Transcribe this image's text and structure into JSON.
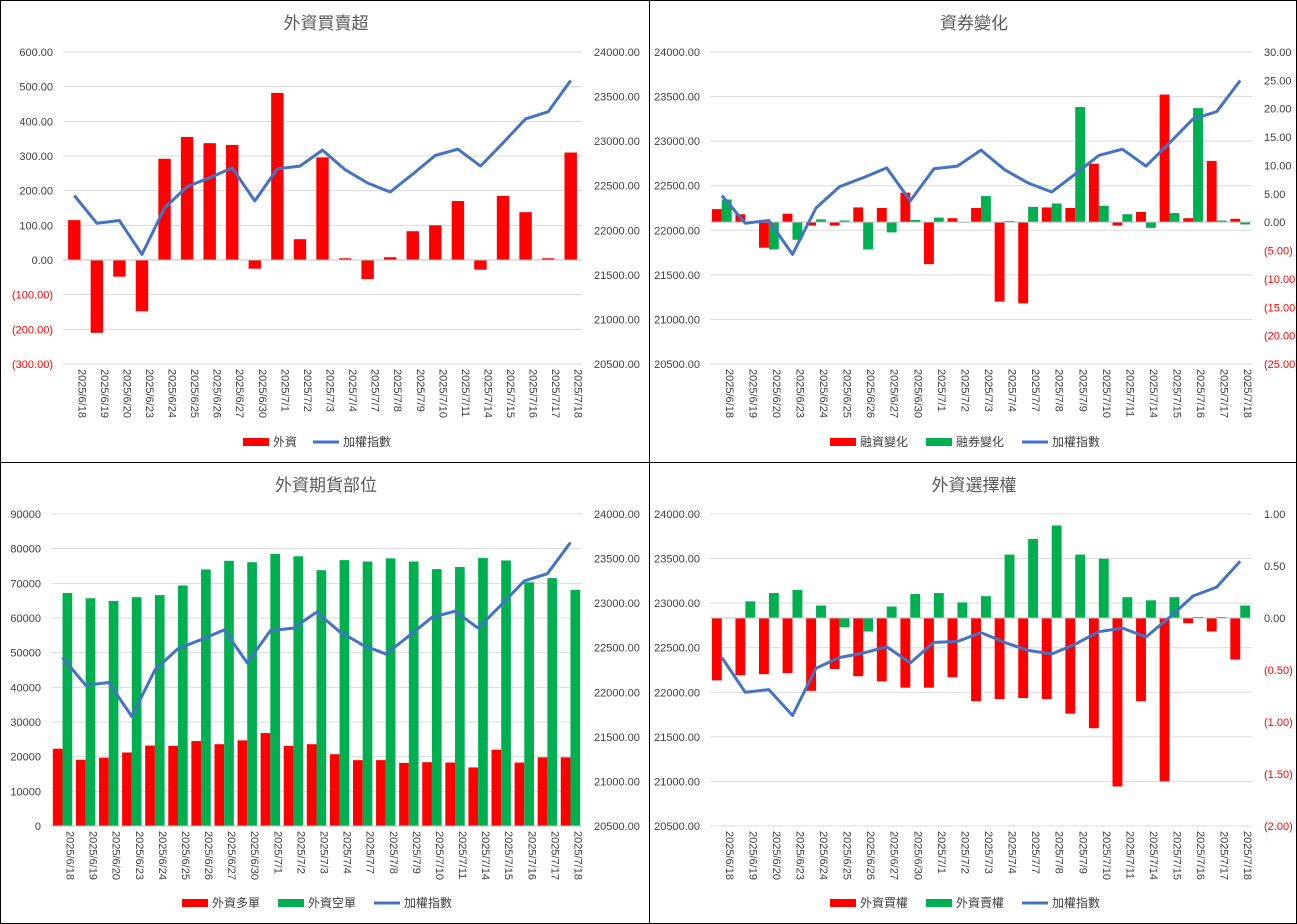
{
  "chart_data": [
    {
      "type": "bar",
      "title": "外資買賣超",
      "categories": [
        "2025/6/18",
        "2025/6/19",
        "2025/6/20",
        "2025/6/23",
        "2025/6/24",
        "2025/6/25",
        "2025/6/26",
        "2025/6/27",
        "2025/6/30",
        "2025/7/1",
        "2025/7/2",
        "2025/7/3",
        "2025/7/4",
        "2025/7/7",
        "2025/7/8",
        "2025/7/9",
        "2025/7/10",
        "2025/7/11",
        "2025/7/14",
        "2025/7/15",
        "2025/7/16",
        "2025/7/17",
        "2025/7/18"
      ],
      "series": [
        {
          "name": "外資",
          "axis": "left",
          "kind": "bar",
          "values": [
            115,
            -210,
            -48,
            -148,
            292,
            355,
            337,
            332,
            -25,
            482,
            60,
            296,
            5,
            -55,
            8,
            83,
            100,
            170,
            -28,
            185,
            138,
            5,
            310
          ]
        },
        {
          "name": "加權指數",
          "axis": "right",
          "kind": "line",
          "values": [
            22390,
            22080,
            22110,
            21730,
            22250,
            22490,
            22590,
            22700,
            22330,
            22690,
            22720,
            22900,
            22680,
            22530,
            22430,
            22630,
            22840,
            22910,
            22720,
            22980,
            23250,
            23330,
            23680
          ]
        }
      ],
      "ylim": [
        -300,
        600
      ],
      "yticks": [
        600,
        500,
        400,
        300,
        200,
        100,
        0,
        -100,
        -200,
        -300
      ],
      "y2lim": [
        20500,
        24000
      ],
      "y2ticks": [
        24000,
        23500,
        23000,
        22500,
        22000,
        21500,
        21000,
        20500
      ],
      "ytick_labels": [
        "600.00",
        "500.00",
        "400.00",
        "300.00",
        "200.00",
        "100.00",
        "0.00",
        "(100.00)",
        "(200.00)",
        "(300.00)"
      ],
      "y2tick_labels": [
        "24000.00",
        "23500.00",
        "23000.00",
        "22500.00",
        "22000.00",
        "21500.00",
        "21000.00",
        "20500.00"
      ],
      "legend_position": "bottom",
      "colors": {
        "外資": "#ff0000",
        "加權指數": "#4472c4"
      }
    },
    {
      "type": "bar",
      "title": "資券變化",
      "categories": [
        "2025/6/18",
        "2025/6/19",
        "2025/6/20",
        "2025/6/23",
        "2025/6/24",
        "2025/6/25",
        "2025/6/26",
        "2025/6/27",
        "2025/6/30",
        "2025/7/1",
        "2025/7/2",
        "2025/7/3",
        "2025/7/4",
        "2025/7/7",
        "2025/7/8",
        "2025/7/9",
        "2025/7/10",
        "2025/7/11",
        "2025/7/14",
        "2025/7/15",
        "2025/7/16",
        "2025/7/17",
        "2025/7/18"
      ],
      "series": [
        {
          "name": "融資變化",
          "axis": "right",
          "kind": "bar",
          "values": [
            2.3,
            1.4,
            -4.5,
            1.5,
            -0.6,
            -0.6,
            2.6,
            2.5,
            5.2,
            -7.4,
            0.7,
            2.5,
            -14.0,
            -14.3,
            2.6,
            2.5,
            10.3,
            -0.6,
            1.8,
            22.5,
            0.7,
            10.8,
            0.6
          ]
        },
        {
          "name": "融券變化",
          "axis": "right",
          "kind": "bar",
          "values": [
            4.0,
            0.0,
            -4.8,
            -3.1,
            0.5,
            0.3,
            -4.8,
            -1.8,
            0.4,
            0.8,
            0.0,
            4.6,
            0.2,
            2.7,
            3.3,
            20.3,
            2.9,
            1.4,
            -1.0,
            1.6,
            20.1,
            0.3,
            -0.4
          ]
        },
        {
          "name": "加權指數",
          "axis": "left",
          "kind": "line",
          "values": [
            22390,
            22080,
            22110,
            21730,
            22250,
            22490,
            22590,
            22700,
            22330,
            22690,
            22720,
            22900,
            22680,
            22530,
            22430,
            22630,
            22840,
            22910,
            22720,
            22980,
            23250,
            23330,
            23680
          ]
        }
      ],
      "ylim": [
        20500,
        24000
      ],
      "yticks": [
        24000,
        23500,
        23000,
        22500,
        22000,
        21500,
        21000,
        20500
      ],
      "y2lim": [
        -25,
        30
      ],
      "y2ticks": [
        30,
        25,
        20,
        15,
        10,
        5,
        0,
        -5,
        -10,
        -15,
        -20,
        -25
      ],
      "ytick_labels": [
        "24000.00",
        "23500.00",
        "23000.00",
        "22500.00",
        "22000.00",
        "21500.00",
        "21000.00",
        "20500.00"
      ],
      "y2tick_labels": [
        "30.00",
        "25.00",
        "20.00",
        "15.00",
        "10.00",
        "5.00",
        "0.00",
        "(5.00)",
        "(10.00)",
        "(15.00)",
        "(20.00)",
        "(25.00)"
      ],
      "legend_position": "bottom",
      "colors": {
        "融資變化": "#ff0000",
        "融券變化": "#00b050",
        "加權指數": "#4472c4"
      }
    },
    {
      "type": "bar",
      "title": "外資期貨部位",
      "categories": [
        "2025/6/18",
        "2025/6/19",
        "2025/6/20",
        "2025/6/23",
        "2025/6/24",
        "2025/6/25",
        "2025/6/26",
        "2025/6/27",
        "2025/6/30",
        "2025/7/1",
        "2025/7/2",
        "2025/7/3",
        "2025/7/4",
        "2025/7/7",
        "2025/7/8",
        "2025/7/9",
        "2025/7/10",
        "2025/7/11",
        "2025/7/14",
        "2025/7/15",
        "2025/7/16",
        "2025/7/17",
        "2025/7/18"
      ],
      "series": [
        {
          "name": "外資多單",
          "axis": "left",
          "kind": "bar",
          "values": [
            22300,
            19100,
            19700,
            21200,
            23200,
            23100,
            24500,
            23600,
            24700,
            26800,
            23100,
            23600,
            20700,
            19000,
            19000,
            18200,
            18400,
            18300,
            16900,
            22000,
            18300,
            19800,
            19800
          ]
        },
        {
          "name": "外資空單",
          "axis": "left",
          "kind": "bar",
          "values": [
            67200,
            65700,
            64900,
            66000,
            66600,
            69400,
            74000,
            76500,
            76100,
            78500,
            77800,
            73800,
            76700,
            76300,
            77200,
            76300,
            74100,
            74700,
            77300,
            76600,
            70300,
            71500,
            68100
          ]
        },
        {
          "name": "加權指數",
          "axis": "right",
          "kind": "line",
          "values": [
            22390,
            22080,
            22110,
            21730,
            22250,
            22490,
            22590,
            22700,
            22330,
            22690,
            22720,
            22900,
            22680,
            22530,
            22430,
            22630,
            22840,
            22910,
            22720,
            22980,
            23250,
            23330,
            23680
          ]
        }
      ],
      "ylim": [
        0,
        90000
      ],
      "yticks": [
        90000,
        80000,
        70000,
        60000,
        50000,
        40000,
        30000,
        20000,
        10000,
        0
      ],
      "y2lim": [
        20500,
        24000
      ],
      "y2ticks": [
        24000,
        23500,
        23000,
        22500,
        22000,
        21500,
        21000,
        20500
      ],
      "ytick_labels": [
        "90000",
        "80000",
        "70000",
        "60000",
        "50000",
        "40000",
        "30000",
        "20000",
        "10000",
        "0"
      ],
      "y2tick_labels": [
        "24000.00",
        "23500.00",
        "23000.00",
        "22500.00",
        "22000.00",
        "21500.00",
        "21000.00",
        "20500.00"
      ],
      "legend_position": "bottom",
      "colors": {
        "外資多單": "#ff0000",
        "外資空單": "#00b050",
        "加權指數": "#4472c4"
      }
    },
    {
      "type": "bar",
      "title": "外資選擇權",
      "categories": [
        "2025/6/18",
        "2025/6/19",
        "2025/6/20",
        "2025/6/23",
        "2025/6/24",
        "2025/6/25",
        "2025/6/26",
        "2025/6/27",
        "2025/6/30",
        "2025/7/1",
        "2025/7/2",
        "2025/7/3",
        "2025/7/4",
        "2025/7/7",
        "2025/7/8",
        "2025/7/9",
        "2025/7/10",
        "2025/7/11",
        "2025/7/14",
        "2025/7/15",
        "2025/7/16",
        "2025/7/17",
        "2025/7/18"
      ],
      "series": [
        {
          "name": "外資買權",
          "axis": "right",
          "kind": "bar",
          "values": [
            -0.6,
            -0.55,
            -0.54,
            -0.53,
            -0.7,
            -0.49,
            -0.56,
            -0.61,
            -0.67,
            -0.67,
            -0.57,
            -0.8,
            -0.78,
            -0.77,
            -0.78,
            -0.92,
            -1.06,
            -1.62,
            -0.8,
            -1.57,
            -0.05,
            -0.13,
            -0.4
          ]
        },
        {
          "name": "外資賣權",
          "axis": "right",
          "kind": "bar",
          "values": [
            0.0,
            0.16,
            0.24,
            0.27,
            0.12,
            -0.09,
            -0.13,
            0.11,
            0.23,
            0.24,
            0.15,
            0.21,
            0.61,
            0.76,
            0.89,
            0.61,
            0.57,
            0.2,
            0.17,
            0.2,
            0.01,
            0.01,
            0.12
          ]
        },
        {
          "name": "加權指數",
          "axis": "left",
          "kind": "line",
          "values": [
            22390,
            22000,
            22030,
            21740,
            22270,
            22390,
            22440,
            22510,
            22330,
            22560,
            22570,
            22670,
            22560,
            22470,
            22430,
            22540,
            22680,
            22720,
            22620,
            22840,
            23080,
            23180,
            23470
          ]
        }
      ],
      "ylim": [
        20500,
        24000
      ],
      "yticks": [
        24000,
        23500,
        23000,
        22500,
        22000,
        21500,
        21000,
        20500
      ],
      "y2lim": [
        -2.0,
        1.0
      ],
      "y2ticks": [
        1.0,
        0.5,
        0.0,
        -0.5,
        -1.0,
        -1.5,
        -2.0
      ],
      "ytick_labels": [
        "24000.00",
        "23500.00",
        "23000.00",
        "22500.00",
        "22000.00",
        "21500.00",
        "21000.00",
        "20500.00"
      ],
      "y2tick_labels": [
        "1.00",
        "0.50",
        "0.00",
        "(0.50)",
        "(1.00)",
        "(1.50)",
        "(2.00)"
      ],
      "legend_position": "bottom",
      "colors": {
        "外資買權": "#ff0000",
        "外資賣權": "#00b050",
        "加權指數": "#4472c4"
      }
    }
  ]
}
